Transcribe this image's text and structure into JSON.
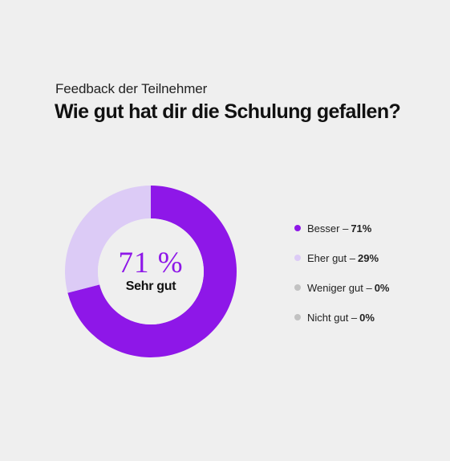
{
  "header": {
    "subtitle": "Feedback der Teilnehmer",
    "title": "Wie gut hat dir die Schulung gefallen?"
  },
  "center": {
    "value": "71 %",
    "label": "Sehr gut"
  },
  "chart_data": {
    "type": "pie",
    "title": "Wie gut hat dir die Schulung gefallen?",
    "subtitle": "Feedback der Teilnehmer",
    "categories": [
      "Besser",
      "Eher gut",
      "Weniger gut",
      "Nicht gut"
    ],
    "values": [
      71,
      29,
      0,
      0
    ],
    "unit": "%",
    "colors": [
      "#8e17e8",
      "#dccbf6",
      "#c2c2c2",
      "#c2c2c2"
    ],
    "legend_labels": [
      "Besser –",
      "Eher gut –",
      "Weniger gut –",
      "Nicht gut –"
    ],
    "legend_values": [
      "71%",
      "29%",
      "0%",
      "0%"
    ],
    "legend": "right",
    "donut": true
  }
}
